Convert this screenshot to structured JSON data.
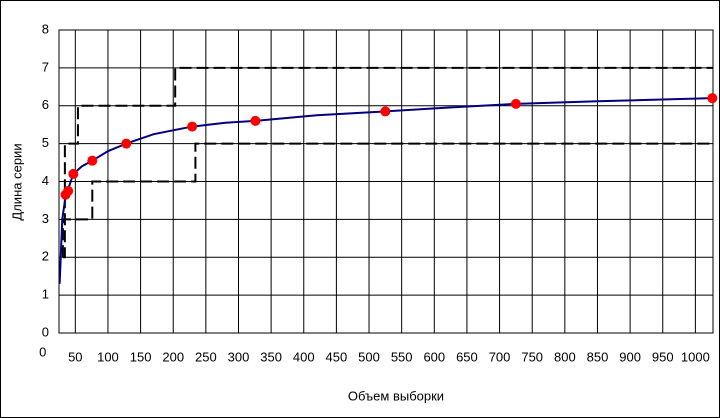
{
  "chart_data": {
    "type": "line",
    "x_label": "Объем выборки",
    "y_label": "Длина серии",
    "xlim": [
      25,
      1027
    ],
    "ylim": [
      0,
      8
    ],
    "xticks": [
      0,
      50,
      100,
      150,
      200,
      250,
      300,
      350,
      400,
      450,
      500,
      550,
      600,
      650,
      700,
      750,
      800,
      850,
      900,
      950,
      1000
    ],
    "yticks": [
      0,
      1,
      2,
      3,
      4,
      5,
      6,
      7,
      8
    ],
    "grid": true,
    "series": [
      {
        "color": "#000000",
        "dashed": true,
        "markers": false,
        "x": [
          31,
          34,
          34,
          54,
          54,
          203,
          203,
          1027
        ],
        "values": [
          2,
          2,
          5,
          5,
          6,
          6,
          7,
          7
        ]
      },
      {
        "color": "#000000",
        "dashed": true,
        "markers": false,
        "x": [
          31,
          31,
          76,
          76,
          234,
          234,
          1027
        ],
        "values": [
          2,
          3,
          3,
          4,
          4,
          5,
          5
        ]
      },
      {
        "color": "#000080",
        "dashed": false,
        "markers": false,
        "x": [
          26,
          30,
          35,
          39,
          47,
          60,
          76,
          100,
          128,
          170,
          229,
          280,
          326,
          420,
          525,
          620,
          725,
          850,
          1026
        ],
        "values": [
          1.3,
          3.0,
          3.6,
          3.8,
          4.2,
          4.4,
          4.55,
          4.8,
          5.0,
          5.25,
          5.45,
          5.55,
          5.6,
          5.75,
          5.85,
          5.95,
          6.05,
          6.12,
          6.2
        ]
      },
      {
        "color": "#ff0000",
        "dashed": false,
        "markers": true,
        "x": [
          35,
          39,
          47,
          76,
          128,
          229,
          326,
          525,
          725,
          1026
        ],
        "values": [
          3.65,
          3.75,
          4.2,
          4.55,
          5.0,
          5.45,
          5.6,
          5.85,
          6.05,
          6.2
        ]
      }
    ]
  }
}
